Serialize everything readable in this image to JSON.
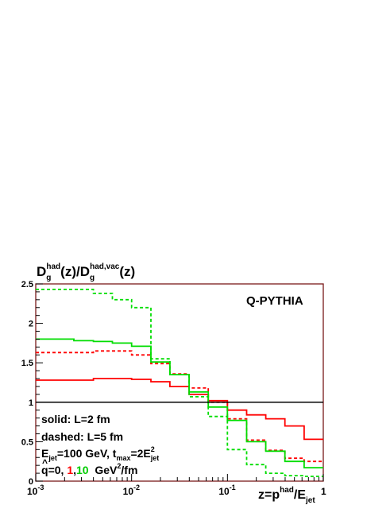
{
  "chart_data": {
    "type": "line",
    "step": true,
    "x_scale": "log",
    "xlim": [
      0.001,
      1
    ],
    "ylim": [
      0,
      2.5
    ],
    "grid": false,
    "title": "",
    "ylabel": {
      "base": "D",
      "sub1": "g",
      "sup1": "had",
      "mid": "(z)/D",
      "sub2": "g",
      "sup2": "had,vac",
      "tail": "(z)"
    },
    "xlabel": {
      "base": "z=p",
      "sup": "had",
      "mid": "/E",
      "sub": "jet"
    },
    "x_ticks": [
      {
        "value": 0.001,
        "base": "10",
        "exp": "-3"
      },
      {
        "value": 0.01,
        "base": "10",
        "exp": "-2"
      },
      {
        "value": 0.1,
        "base": "10",
        "exp": "-1"
      },
      {
        "value": 1,
        "base": "1",
        "exp": ""
      }
    ],
    "y_ticks": [
      "0",
      "0.5",
      "1",
      "1.5",
      "2",
      "2.5"
    ],
    "reference_line": 1,
    "bin_edges": [
      0.001,
      0.0025,
      0.004,
      0.0063,
      0.01,
      0.0159,
      0.0251,
      0.0398,
      0.0631,
      0.1,
      0.1585,
      0.2512,
      0.3981,
      0.631,
      1.0
    ],
    "series": [
      {
        "color": "#ff0000",
        "dash": "solid",
        "values": [
          1.28,
          1.28,
          1.3,
          1.3,
          1.29,
          1.26,
          1.2,
          1.1,
          1.02,
          0.9,
          0.84,
          0.79,
          0.7,
          0.53
        ]
      },
      {
        "color": "#ff0000",
        "dash": "dashed",
        "values": [
          1.63,
          1.63,
          1.65,
          1.65,
          1.6,
          1.49,
          1.36,
          1.18,
          1.0,
          0.79,
          0.52,
          0.39,
          0.29,
          0.25
        ]
      },
      {
        "color": "#00dd00",
        "dash": "solid",
        "values": [
          1.8,
          1.78,
          1.77,
          1.75,
          1.71,
          1.51,
          1.35,
          1.13,
          0.94,
          0.77,
          0.5,
          0.38,
          0.25,
          0.17
        ]
      },
      {
        "color": "#00dd00",
        "dash": "dashed",
        "values": [
          2.43,
          2.43,
          2.38,
          2.3,
          2.2,
          1.55,
          1.35,
          1.07,
          0.82,
          0.4,
          0.21,
          0.1,
          0.07,
          0.06
        ]
      }
    ],
    "annotations": {
      "generator": "Q-PYTHIA",
      "solid_label": "solid: L=2 fm",
      "dashed_label": "dashed: L=5 fm",
      "energy": {
        "prefix": "E",
        "prefix_sub": "jet",
        "text1": "=100 GeV, t",
        "t_sub": "max",
        "text2": "=2E",
        "e2_sup": "2",
        "e2_sub": "jet"
      },
      "qhat": {
        "symbol": "q",
        "eq0": "=0, ",
        "v1": "1",
        "comma": ",",
        "v2": "10",
        "unit": "  GeV",
        "unit_sup": "2",
        "unit_tail": "/fm",
        "color_v1": "#ff0000",
        "color_v2": "#00cc00"
      }
    }
  }
}
